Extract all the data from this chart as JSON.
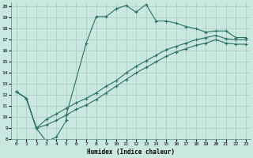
{
  "xlabel": "Humidex (Indice chaleur)",
  "bg_color": "#c8e8e0",
  "grid_color": "#a8c8c0",
  "line_color": "#2a7060",
  "xlim": [
    -0.5,
    23.5
  ],
  "ylim": [
    8,
    20.4
  ],
  "xticks": [
    0,
    1,
    2,
    3,
    4,
    5,
    6,
    7,
    8,
    9,
    10,
    11,
    12,
    13,
    14,
    15,
    16,
    17,
    18,
    19,
    20,
    21,
    22,
    23
  ],
  "yticks": [
    8,
    9,
    10,
    11,
    12,
    13,
    14,
    15,
    16,
    17,
    18,
    19,
    20
  ],
  "line1_x": [
    0,
    1,
    2,
    3,
    4,
    5,
    5,
    7,
    8,
    9,
    10,
    11,
    12,
    13,
    14,
    15,
    16,
    17,
    18,
    19,
    20,
    21,
    22,
    23
  ],
  "line1_y": [
    12.3,
    11.7,
    9.0,
    7.8,
    8.2,
    9.7,
    10.2,
    16.7,
    19.1,
    19.1,
    19.8,
    20.1,
    19.5,
    20.2,
    18.7,
    18.7,
    18.5,
    18.2,
    18.0,
    17.7,
    17.8,
    17.8,
    17.2,
    17.2
  ],
  "line2_x": [
    0,
    1,
    2,
    3,
    4,
    5,
    6,
    7,
    8,
    9,
    10,
    11,
    12,
    13,
    14,
    15,
    16,
    17,
    18,
    19,
    20,
    21,
    22,
    23
  ],
  "line2_y": [
    12.3,
    11.7,
    9.0,
    9.8,
    10.3,
    10.8,
    11.3,
    11.7,
    12.2,
    12.8,
    13.3,
    14.0,
    14.6,
    15.1,
    15.6,
    16.1,
    16.4,
    16.7,
    17.0,
    17.2,
    17.4,
    17.1,
    17.0,
    17.0
  ],
  "line3_x": [
    0,
    1,
    2,
    3,
    4,
    5,
    6,
    7,
    8,
    9,
    10,
    11,
    12,
    13,
    14,
    15,
    16,
    17,
    18,
    19,
    20,
    21,
    22,
    23
  ],
  "line3_y": [
    12.3,
    11.7,
    9.0,
    9.3,
    9.7,
    10.2,
    10.7,
    11.1,
    11.6,
    12.2,
    12.8,
    13.4,
    14.0,
    14.5,
    15.0,
    15.5,
    15.9,
    16.2,
    16.5,
    16.7,
    17.0,
    16.7,
    16.6,
    16.6
  ]
}
